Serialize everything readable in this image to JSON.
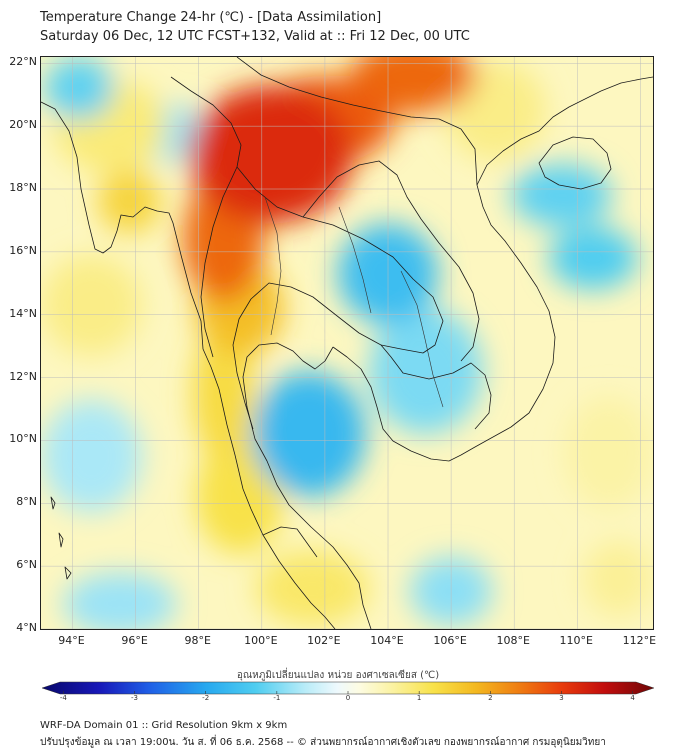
{
  "header": {
    "title": "Temperature Change 24-hr (℃) - [Data Assimilation]",
    "subtitle": "Saturday 06 Dec, 12 UTC FCST+132, Valid at :: Fri 12 Dec, 00 UTC"
  },
  "map": {
    "lat_ticks": [
      {
        "value": 22,
        "label": "22°N"
      },
      {
        "value": 20,
        "label": "20°N"
      },
      {
        "value": 18,
        "label": "18°N"
      },
      {
        "value": 16,
        "label": "16°N"
      },
      {
        "value": 14,
        "label": "14°N"
      },
      {
        "value": 12,
        "label": "12°N"
      },
      {
        "value": 10,
        "label": "10°N"
      },
      {
        "value": 8,
        "label": "8°N"
      },
      {
        "value": 6,
        "label": "6°N"
      },
      {
        "value": 4,
        "label": "4°N"
      }
    ],
    "lon_ticks": [
      {
        "value": 94,
        "label": "94°E"
      },
      {
        "value": 96,
        "label": "96°E"
      },
      {
        "value": 98,
        "label": "98°E"
      },
      {
        "value": 100,
        "label": "100°E"
      },
      {
        "value": 102,
        "label": "102°E"
      },
      {
        "value": 104,
        "label": "104°E"
      },
      {
        "value": 106,
        "label": "106°E"
      },
      {
        "value": 108,
        "label": "108°E"
      },
      {
        "value": 110,
        "label": "110°E"
      },
      {
        "value": 112,
        "label": "112°E"
      }
    ],
    "lat_range": [
      4,
      22.2
    ],
    "lon_range": [
      93,
      112.4
    ],
    "field_anomalies": [
      {
        "lon": 100.3,
        "lat": 19.1,
        "value": 3.2,
        "rx": 2.6,
        "ry": 2.2
      },
      {
        "lon": 102.0,
        "lat": 20.2,
        "value": 2.7,
        "rx": 2.2,
        "ry": 1.4
      },
      {
        "lon": 104.8,
        "lat": 21.6,
        "value": 2.6,
        "rx": 2.0,
        "ry": 1.2
      },
      {
        "lon": 98.8,
        "lat": 16.4,
        "value": 2.6,
        "rx": 1.3,
        "ry": 2.0
      },
      {
        "lon": 99.3,
        "lat": 14.2,
        "value": 1.7,
        "rx": 1.4,
        "ry": 1.5
      },
      {
        "lon": 98.8,
        "lat": 11.5,
        "value": 1.3,
        "rx": 1.0,
        "ry": 2.2
      },
      {
        "lon": 99.3,
        "lat": 8.2,
        "value": 1.2,
        "rx": 1.4,
        "ry": 1.8
      },
      {
        "lon": 101.6,
        "lat": 5.3,
        "value": 1.0,
        "rx": 1.8,
        "ry": 1.2
      },
      {
        "lon": 95.8,
        "lat": 17.6,
        "value": 1.4,
        "rx": 1.0,
        "ry": 1.0
      },
      {
        "lon": 94.6,
        "lat": 14.3,
        "value": 0.8,
        "rx": 1.6,
        "ry": 1.6
      },
      {
        "lon": 95.2,
        "lat": 20.0,
        "value": 0.9,
        "rx": 1.8,
        "ry": 1.5
      },
      {
        "lon": 107.4,
        "lat": 20.5,
        "value": 0.8,
        "rx": 1.6,
        "ry": 1.6
      },
      {
        "lon": 104.0,
        "lat": 15.3,
        "value": -1.6,
        "rx": 1.6,
        "ry": 1.6
      },
      {
        "lon": 105.2,
        "lat": 12.2,
        "value": -1.0,
        "rx": 1.8,
        "ry": 2.0
      },
      {
        "lon": 101.5,
        "lat": 10.2,
        "value": -1.7,
        "rx": 1.8,
        "ry": 2.0
      },
      {
        "lon": 109.5,
        "lat": 17.8,
        "value": -1.2,
        "rx": 1.6,
        "ry": 1.0
      },
      {
        "lon": 110.5,
        "lat": 15.8,
        "value": -1.3,
        "rx": 1.4,
        "ry": 1.0
      },
      {
        "lon": 94.6,
        "lat": 9.5,
        "value": -0.7,
        "rx": 1.6,
        "ry": 1.8
      },
      {
        "lon": 94.2,
        "lat": 21.2,
        "value": -1.2,
        "rx": 1.1,
        "ry": 1.0
      },
      {
        "lon": 97.0,
        "lat": 19.8,
        "value": -0.8,
        "rx": 1.3,
        "ry": 0.9
      },
      {
        "lon": 106.0,
        "lat": 5.2,
        "value": -0.9,
        "rx": 1.3,
        "ry": 1.1
      },
      {
        "lon": 95.5,
        "lat": 4.8,
        "value": -0.8,
        "rx": 1.8,
        "ry": 1.0
      },
      {
        "lon": 111.0,
        "lat": 9.6,
        "value": 0.6,
        "rx": 1.4,
        "ry": 1.8
      },
      {
        "lon": 111.3,
        "lat": 5.6,
        "value": 0.7,
        "rx": 1.1,
        "ry": 1.2
      }
    ]
  },
  "colorbar": {
    "title": "อุณหภูมิเปลี่ยนแปลง หน่วย องศาเซลเซียส (℃)",
    "min": -4.3,
    "max": 4.3,
    "ticks": [
      {
        "value": -4,
        "label": "-4"
      },
      {
        "value": -3,
        "label": "-3"
      },
      {
        "value": -2,
        "label": "-2"
      },
      {
        "value": -1,
        "label": "-1"
      },
      {
        "value": 0,
        "label": "0"
      },
      {
        "value": 1,
        "label": "1"
      },
      {
        "value": 2,
        "label": "2"
      },
      {
        "value": 3,
        "label": "3"
      },
      {
        "value": 4,
        "label": "4"
      }
    ],
    "stops": [
      {
        "value": -4.3,
        "color": "#08086b"
      },
      {
        "value": -3.5,
        "color": "#1818b8"
      },
      {
        "value": -2.8,
        "color": "#1f5ee6"
      },
      {
        "value": -2.0,
        "color": "#27a8ef"
      },
      {
        "value": -1.3,
        "color": "#4fcdf0"
      },
      {
        "value": -0.6,
        "color": "#b9ecf8"
      },
      {
        "value": -0.15,
        "color": "#eef9fd"
      },
      {
        "value": 0.15,
        "color": "#fdfce3"
      },
      {
        "value": 0.6,
        "color": "#fbf3a6"
      },
      {
        "value": 1.2,
        "color": "#f8e24a"
      },
      {
        "value": 1.8,
        "color": "#f3b820"
      },
      {
        "value": 2.4,
        "color": "#ef7d12"
      },
      {
        "value": 3.0,
        "color": "#e83b0c"
      },
      {
        "value": 3.6,
        "color": "#c20d0d"
      },
      {
        "value": 4.3,
        "color": "#6e0707"
      }
    ]
  },
  "footer": {
    "line1": "WRF-DA Domain 01 :: Grid Resolution 9km x 9km",
    "line2": "ปรับปรุงข้อมูล ณ เวลา 19:00น. วัน ส. ที่ 06 ธ.ค. 2568 -- © ส่วนพยากรณ์อากาศเชิงตัวเลข กองพยากรณ์อากาศ กรมอุตุนิยมวิทยา"
  }
}
